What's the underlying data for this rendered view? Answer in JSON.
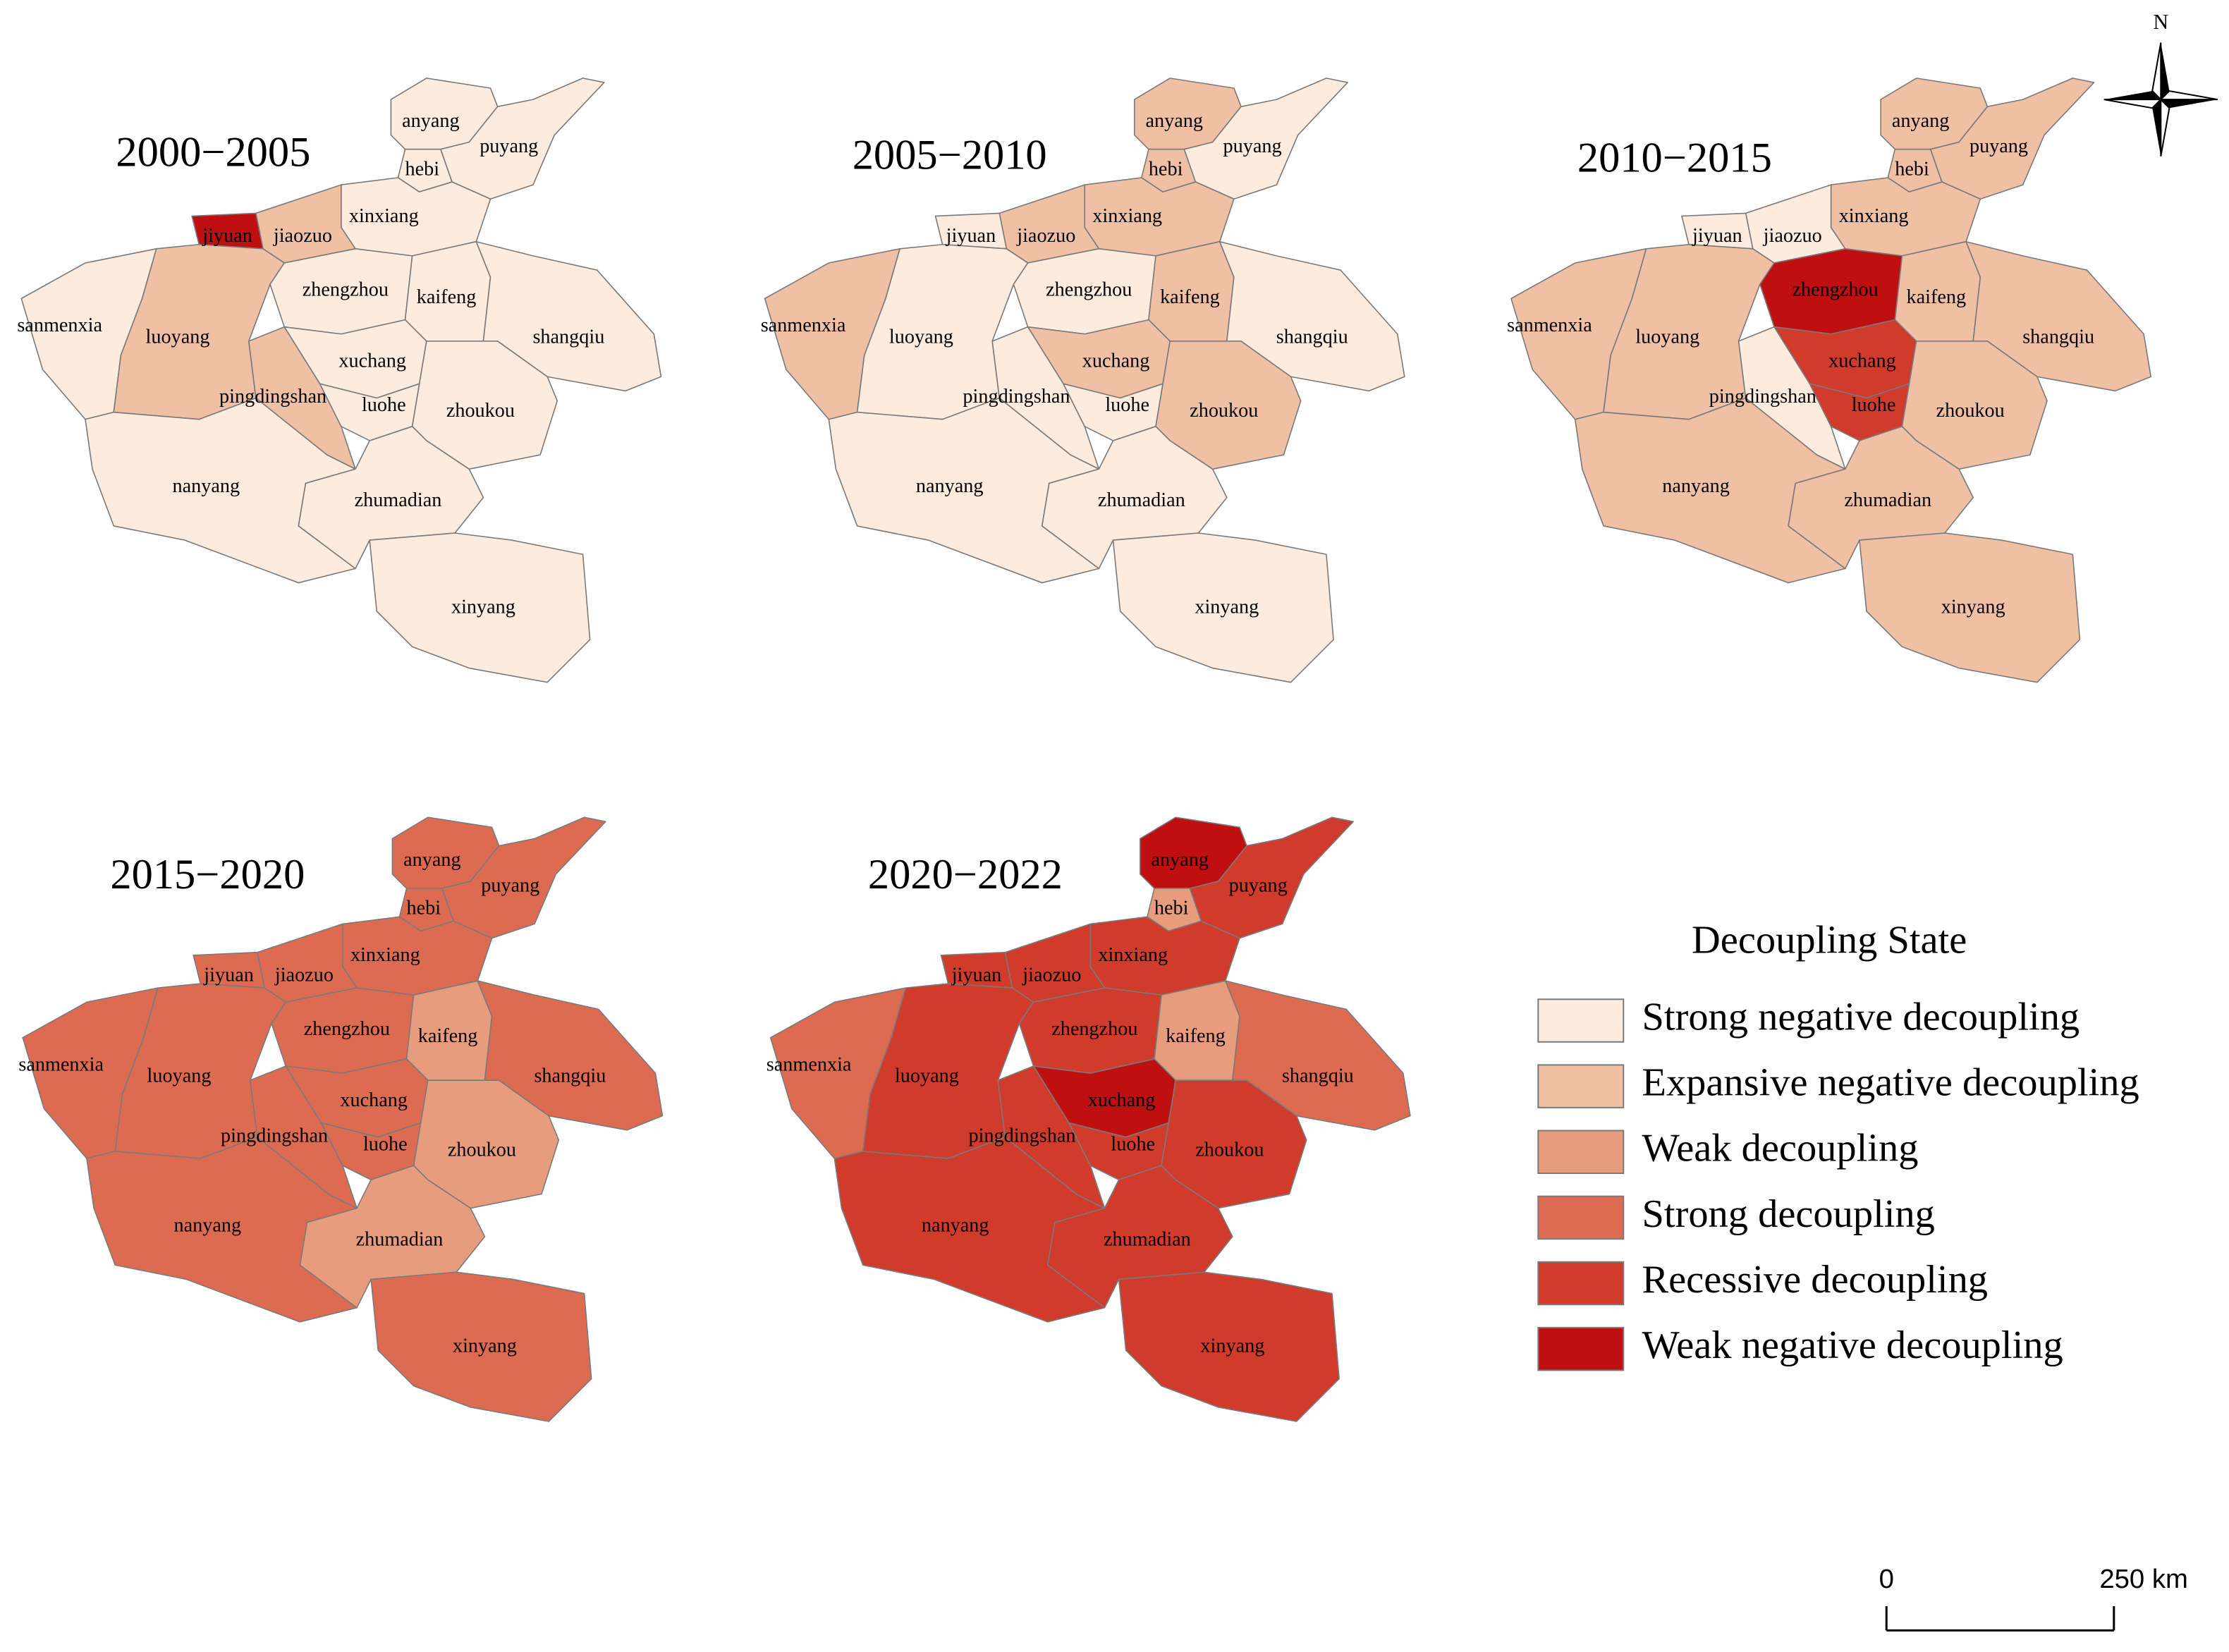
{
  "panels": [
    {
      "title": "2000−2005",
      "regions": [
        {
          "name": "anyang",
          "color": "#fdebdd"
        },
        {
          "name": "hebi",
          "color": "#fdebdd"
        },
        {
          "name": "puyang",
          "color": "#fdebdd"
        },
        {
          "name": "xinxiang",
          "color": "#fdebdd"
        },
        {
          "name": "jiaozuo",
          "color": "#f0c0a4"
        },
        {
          "name": "jiyuan",
          "color": "#c00f10"
        },
        {
          "name": "sanmenxia",
          "color": "#fdebdd"
        },
        {
          "name": "luoyang",
          "color": "#f0c0a4"
        },
        {
          "name": "zhengzhou",
          "color": "#fdebdd"
        },
        {
          "name": "kaifeng",
          "color": "#fdebdd"
        },
        {
          "name": "shangqiu",
          "color": "#fdebdd"
        },
        {
          "name": "xuchang",
          "color": "#fdebdd"
        },
        {
          "name": "pingdingshan",
          "color": "#f0c0a4"
        },
        {
          "name": "luohe",
          "color": "#fdebdd"
        },
        {
          "name": "zhoukou",
          "color": "#fdebdd"
        },
        {
          "name": "nanyang",
          "color": "#fdebdd"
        },
        {
          "name": "zhumadian",
          "color": "#fdebdd"
        },
        {
          "name": "xinyang",
          "color": "#fdebdd"
        }
      ]
    },
    {
      "title": "2005−2010",
      "regions": [
        {
          "name": "anyang",
          "color": "#f0c0a4"
        },
        {
          "name": "hebi",
          "color": "#f0c0a4"
        },
        {
          "name": "puyang",
          "color": "#fdebdd"
        },
        {
          "name": "xinxiang",
          "color": "#f0c0a4"
        },
        {
          "name": "jiaozuo",
          "color": "#f0c0a4"
        },
        {
          "name": "jiyuan",
          "color": "#fdebdd"
        },
        {
          "name": "sanmenxia",
          "color": "#f0c0a4"
        },
        {
          "name": "luoyang",
          "color": "#fdebdd"
        },
        {
          "name": "zhengzhou",
          "color": "#fdebdd"
        },
        {
          "name": "kaifeng",
          "color": "#f0c0a4"
        },
        {
          "name": "shangqiu",
          "color": "#fdebdd"
        },
        {
          "name": "xuchang",
          "color": "#f0c0a4"
        },
        {
          "name": "pingdingshan",
          "color": "#fdebdd"
        },
        {
          "name": "luohe",
          "color": "#fdebdd"
        },
        {
          "name": "zhoukou",
          "color": "#f0c0a4"
        },
        {
          "name": "nanyang",
          "color": "#fdebdd"
        },
        {
          "name": "zhumadian",
          "color": "#fdebdd"
        },
        {
          "name": "xinyang",
          "color": "#fdebdd"
        }
      ]
    },
    {
      "title": "2010−2015",
      "regions": [
        {
          "name": "anyang",
          "color": "#f0c0a4"
        },
        {
          "name": "hebi",
          "color": "#f0c0a4"
        },
        {
          "name": "puyang",
          "color": "#f0c0a4"
        },
        {
          "name": "xinxiang",
          "color": "#f0c0a4"
        },
        {
          "name": "jiaozuo",
          "color": "#fdebdd"
        },
        {
          "name": "jiyuan",
          "color": "#fdebdd"
        },
        {
          "name": "sanmenxia",
          "color": "#f0c0a4"
        },
        {
          "name": "luoyang",
          "color": "#f0c0a4"
        },
        {
          "name": "zhengzhou",
          "color": "#c00f10"
        },
        {
          "name": "kaifeng",
          "color": "#f0c0a4"
        },
        {
          "name": "shangqiu",
          "color": "#f0c0a4"
        },
        {
          "name": "xuchang",
          "color": "#d03b2c"
        },
        {
          "name": "pingdingshan",
          "color": "#fdebdd"
        },
        {
          "name": "luohe",
          "color": "#d03b2c"
        },
        {
          "name": "zhoukou",
          "color": "#f0c0a4"
        },
        {
          "name": "nanyang",
          "color": "#f0c0a4"
        },
        {
          "name": "zhumadian",
          "color": "#f0c0a4"
        },
        {
          "name": "xinyang",
          "color": "#f0c0a4"
        }
      ]
    },
    {
      "title": "2015−2020",
      "regions": [
        {
          "name": "anyang",
          "color": "#dd6b51"
        },
        {
          "name": "hebi",
          "color": "#dd6b51"
        },
        {
          "name": "puyang",
          "color": "#dd6b51"
        },
        {
          "name": "xinxiang",
          "color": "#dd6b51"
        },
        {
          "name": "jiaozuo",
          "color": "#dd6b51"
        },
        {
          "name": "jiyuan",
          "color": "#dd6b51"
        },
        {
          "name": "sanmenxia",
          "color": "#dd6b51"
        },
        {
          "name": "luoyang",
          "color": "#dd6b51"
        },
        {
          "name": "zhengzhou",
          "color": "#dd6b51"
        },
        {
          "name": "kaifeng",
          "color": "#e89c7e"
        },
        {
          "name": "shangqiu",
          "color": "#dd6b51"
        },
        {
          "name": "xuchang",
          "color": "#dd6b51"
        },
        {
          "name": "pingdingshan",
          "color": "#dd6b51"
        },
        {
          "name": "luohe",
          "color": "#dd6b51"
        },
        {
          "name": "zhoukou",
          "color": "#e89c7e"
        },
        {
          "name": "nanyang",
          "color": "#dd6b51"
        },
        {
          "name": "zhumadian",
          "color": "#e89c7e"
        },
        {
          "name": "xinyang",
          "color": "#dd6b51"
        }
      ]
    },
    {
      "title": "2020−2022",
      "regions": [
        {
          "name": "anyang",
          "color": "#c00f10"
        },
        {
          "name": "hebi",
          "color": "#e89c7e"
        },
        {
          "name": "puyang",
          "color": "#d03b2c"
        },
        {
          "name": "xinxiang",
          "color": "#d03b2c"
        },
        {
          "name": "jiaozuo",
          "color": "#d03b2c"
        },
        {
          "name": "jiyuan",
          "color": "#d03b2c"
        },
        {
          "name": "sanmenxia",
          "color": "#dd6b51"
        },
        {
          "name": "luoyang",
          "color": "#d03b2c"
        },
        {
          "name": "zhengzhou",
          "color": "#d03b2c"
        },
        {
          "name": "kaifeng",
          "color": "#e89c7e"
        },
        {
          "name": "shangqiu",
          "color": "#dd6b51"
        },
        {
          "name": "xuchang",
          "color": "#c00f10"
        },
        {
          "name": "pingdingshan",
          "color": "#d03b2c"
        },
        {
          "name": "luohe",
          "color": "#d03b2c"
        },
        {
          "name": "zhoukou",
          "color": "#d03b2c"
        },
        {
          "name": "nanyang",
          "color": "#d03b2c"
        },
        {
          "name": "zhumadian",
          "color": "#d03b2c"
        },
        {
          "name": "xinyang",
          "color": "#d03b2c"
        }
      ]
    }
  ],
  "legend": {
    "title": "Decoupling State",
    "items": [
      {
        "name": "Strong negative decoupling",
        "color": "#fdebdd"
      },
      {
        "name": "Expansive negative decoupling",
        "color": "#f0c0a4"
      },
      {
        "name": "Weak decoupling",
        "color": "#e89c7e"
      },
      {
        "name": "Strong decoupling",
        "color": "#dd6b51"
      },
      {
        "name": "Recessive decoupling",
        "color": "#d03b2c"
      },
      {
        "name": "Weak negative decoupling",
        "color": "#c00f10"
      }
    ]
  },
  "scale_bar": {
    "start": "0",
    "end": "250 km"
  },
  "north": "N"
}
